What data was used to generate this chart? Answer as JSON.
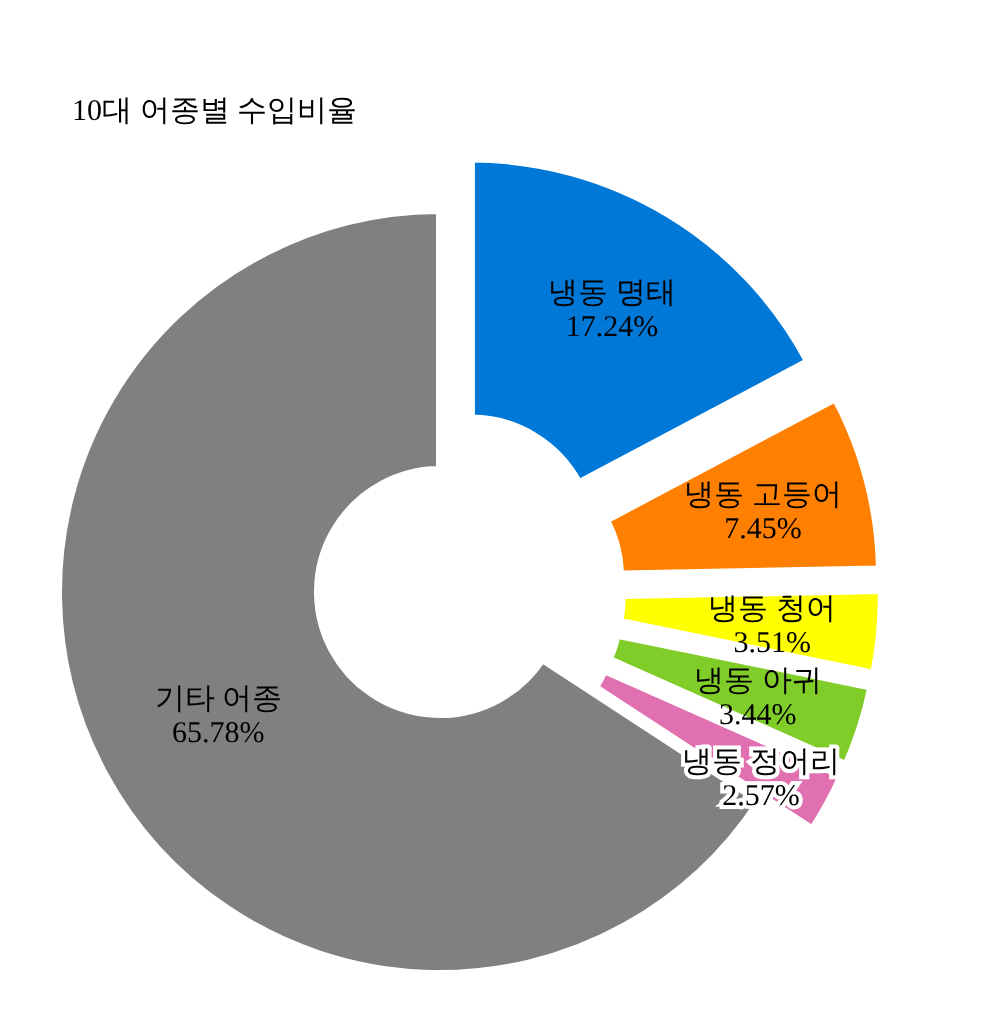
{
  "chart_data": {
    "type": "donut",
    "title": "10대 어종별 수입비율",
    "categories": [
      "냉동 명태",
      "냉동 고등어",
      "냉동 청어",
      "냉동 아귀",
      "냉동 정어리",
      "기타 어종"
    ],
    "values": [
      17.24,
      7.45,
      3.51,
      3.44,
      2.57,
      65.78
    ],
    "colors": [
      "#0078d7",
      "#ff7f00",
      "#ffff00",
      "#80cc28",
      "#e070b0",
      "#808080"
    ],
    "value_labels": [
      "17.24%",
      "7.45%",
      "3.51%",
      "3.44%",
      "2.57%",
      "65.78%"
    ]
  }
}
